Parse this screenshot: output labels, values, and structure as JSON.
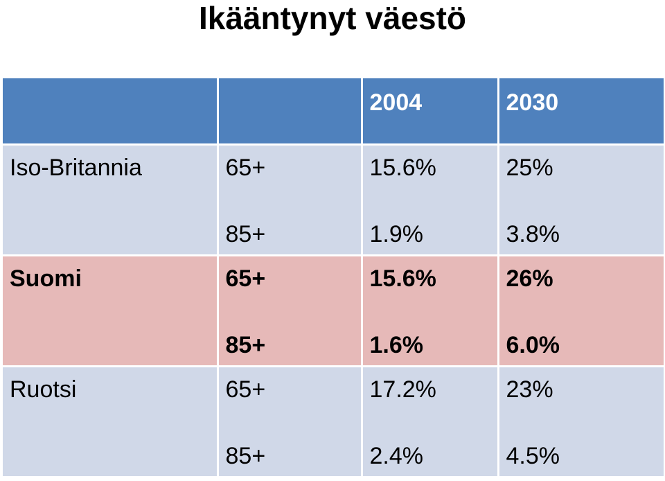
{
  "title": "Ikääntynyt väestö",
  "table": {
    "headers": [
      "",
      "",
      "2004",
      "2030"
    ],
    "rows": [
      {
        "country": "Iso-Britannia",
        "age_groups": [
          "65+",
          "85+"
        ],
        "values_2004": [
          "15.6%",
          "1.9%"
        ],
        "values_2030": [
          "25%",
          "3.8%"
        ]
      },
      {
        "country": "Suomi",
        "age_groups": [
          "65+",
          "85+"
        ],
        "values_2004": [
          "15.6%",
          "1.6%"
        ],
        "values_2030": [
          "26%",
          "6.0%"
        ]
      },
      {
        "country": "Ruotsi",
        "age_groups": [
          "65+",
          "85+"
        ],
        "values_2004": [
          "17.2%",
          "2.4%"
        ],
        "values_2030": [
          "23%",
          "4.5%"
        ]
      }
    ]
  },
  "colors": {
    "header": "#4f81bd",
    "row_default": "#d0d8e8",
    "row_highlight": "#e6b9b8"
  }
}
